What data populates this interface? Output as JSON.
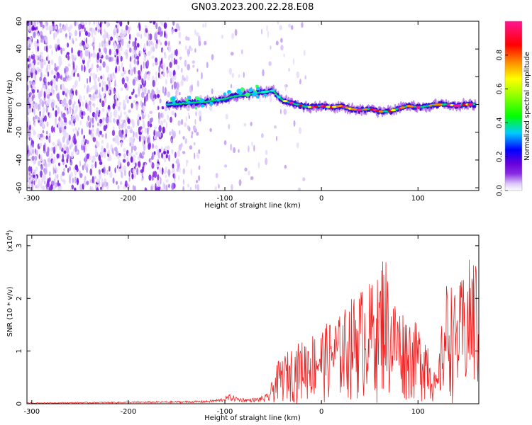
{
  "title": "GN03.2023.200.22.28.E08",
  "chart_data": [
    {
      "type": "heatmap",
      "xlabel": "Height of straight line (km)",
      "ylabel": "Frequency (Hz)",
      "xlim": [
        -305,
        163
      ],
      "ylim": [
        -62,
        60
      ],
      "x_ticks": [
        "-300",
        "-200",
        "-100",
        "0",
        "100"
      ],
      "x_tick_values": [
        -300,
        -200,
        -100,
        0,
        100
      ],
      "y_ticks": [
        "60",
        "40",
        "20",
        "0",
        "-20",
        "-40",
        "-60"
      ],
      "y_tick_values": [
        60,
        40,
        20,
        0,
        -20,
        -40,
        -60
      ],
      "colorbar": {
        "label": "Normalized spectral amplitude",
        "range": [
          0,
          1
        ],
        "ticks": [
          "0.0",
          "0.2",
          "0.4",
          "0.6",
          "0.8"
        ],
        "tick_values": [
          0.0,
          0.2,
          0.4,
          0.6,
          0.8
        ],
        "colors": [
          "#ffffff",
          "#dcc8fa",
          "#8a2be2",
          "#6600dd",
          "#0000ff",
          "#00ccff",
          "#00ff00",
          "#ffff00",
          "#ff6600",
          "#ff0000",
          "#ff1493"
        ]
      },
      "signal_track": {
        "x": [
          -160,
          -140,
          -120,
          -100,
          -90,
          -80,
          -70,
          -60,
          -50,
          -45,
          -40,
          -30,
          -20,
          -10,
          0,
          10,
          20,
          30,
          40,
          50,
          60,
          70,
          80,
          90,
          100,
          110,
          120,
          130,
          140,
          150,
          160
        ],
        "y": [
          0,
          1,
          2,
          4,
          6,
          7,
          8,
          9,
          10,
          6,
          3,
          1,
          -1,
          -2,
          -1,
          -2,
          -1,
          -3,
          -4,
          -3,
          -5,
          -5,
          -3,
          -1,
          -2,
          -1,
          0,
          0,
          -1,
          0,
          0
        ]
      }
    },
    {
      "type": "line",
      "xlabel": "Height of straight line (km)",
      "ylabel": "SNR (10 * v/v)",
      "y_multiplier": "(x10",
      "y_multiplier_exp": "4",
      "y_multiplier_close": ")",
      "xlim": [
        -305,
        163
      ],
      "ylim": [
        0,
        3.2
      ],
      "x_ticks": [
        "-300",
        "-200",
        "-100",
        "0",
        "100"
      ],
      "x_tick_values": [
        -300,
        -200,
        -100,
        0,
        100
      ],
      "y_ticks": [
        "0",
        "1",
        "2",
        "3"
      ],
      "y_tick_values": [
        0,
        1,
        2,
        3
      ],
      "color": "#ee2222",
      "envelope": {
        "x": [
          -305,
          -250,
          -200,
          -150,
          -120,
          -105,
          -95,
          -85,
          -75,
          -65,
          -55,
          -50,
          -45,
          -40,
          -30,
          -20,
          -10,
          0,
          10,
          20,
          30,
          40,
          50,
          55,
          60,
          65,
          70,
          80,
          90,
          100,
          110,
          115,
          120,
          125,
          130,
          135,
          140,
          145,
          150,
          155,
          163
        ],
        "y": [
          0.02,
          0.03,
          0.04,
          0.05,
          0.06,
          0.1,
          0.18,
          0.12,
          0.1,
          0.12,
          0.2,
          0.5,
          0.8,
          0.9,
          1.1,
          1.2,
          1.35,
          1.45,
          1.6,
          1.7,
          2.0,
          2.2,
          2.3,
          2.4,
          2.4,
          3.2,
          2.2,
          1.9,
          1.7,
          1.5,
          1.4,
          0.7,
          0.5,
          1.6,
          2.4,
          2.3,
          2.0,
          2.4,
          2.5,
          2.9,
          2.8
        ]
      }
    }
  ]
}
